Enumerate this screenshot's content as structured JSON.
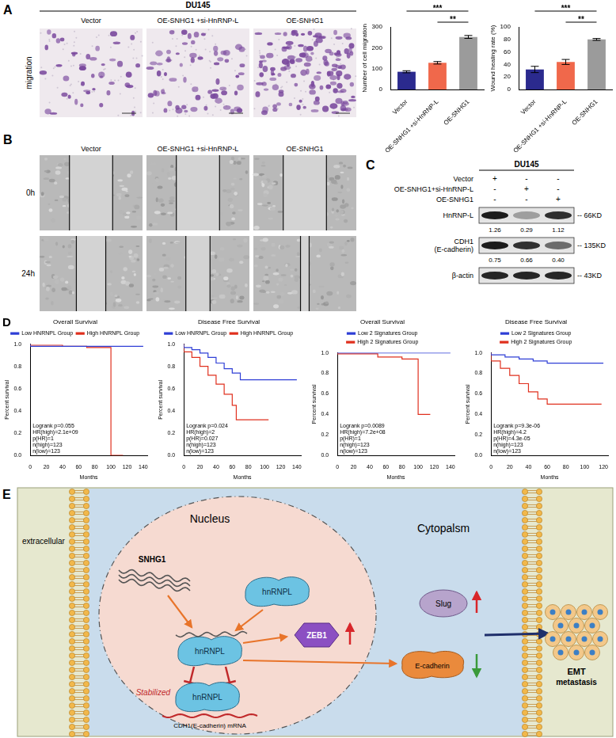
{
  "panel_labels": [
    "A",
    "B",
    "C",
    "D",
    "E"
  ],
  "panel_a": {
    "cell_line": "DU145",
    "columns": [
      "Vector",
      "OE-SNHG1 +si-HnRNP-L",
      "OE-SNHG1"
    ],
    "row_label": "migration"
  },
  "panel_b": {
    "columns": [
      "Vector",
      "OE-SNHG1 +si-HnRNP-L",
      "OE-SNHG1"
    ],
    "rows": [
      "0h",
      "24h"
    ]
  },
  "panel_c": {
    "cell_line": "DU145",
    "conditions": [
      {
        "name": "Vector",
        "marks": [
          "+",
          "-",
          "-"
        ]
      },
      {
        "name": "OE-SNHG1+si-HnRNP-L",
        "marks": [
          "-",
          "+",
          "-"
        ]
      },
      {
        "name": "OE-SNHG1",
        "marks": [
          "-",
          "-",
          "+"
        ]
      }
    ],
    "bands": [
      {
        "name": [
          "HnRNP-L"
        ],
        "size": "-- 66KD",
        "values": [
          1.26,
          0.29,
          1.12
        ],
        "value_labels": [
          "1.26",
          "0.29",
          "1.12"
        ]
      },
      {
        "name": [
          "CDH1",
          "(E-cadherin)"
        ],
        "size": "-- 135KD",
        "values": [
          0.75,
          0.66,
          0.4
        ],
        "value_labels": [
          "0.75",
          "0.66",
          "0.40"
        ]
      },
      {
        "name": [
          "β-actin"
        ],
        "size": "-- 43KD"
      }
    ]
  },
  "chart_data": [
    {
      "type": "bar",
      "y_label": "Number of cell migration",
      "categories": [
        "Vector",
        "OE-SNHG1 +si-HnRNP-L",
        "OE-SNHG1"
      ],
      "values": [
        85,
        128,
        252
      ],
      "errors": [
        5,
        6,
        7
      ],
      "colors": [
        "#2b2a8e",
        "#f0684b",
        "#9b9b9b"
      ],
      "ylim": [
        0,
        300
      ],
      "yticks": [
        0,
        100,
        200,
        300
      ],
      "grid": false,
      "significance": [
        {
          "from": "Vector",
          "to": "OE-SNHG1",
          "label": "***"
        },
        {
          "from": "OE-SNHG1 +si-HnRNP-L",
          "to": "OE-SNHG1",
          "label": "**"
        }
      ]
    },
    {
      "type": "bar",
      "y_label": "Wound healing rate (%)",
      "categories": [
        "Vector",
        "OE-SNHG1 +si-HnRNP-L",
        "OE-SNHG1"
      ],
      "values": [
        32,
        44,
        80
      ],
      "errors": [
        5,
        4,
        1.5
      ],
      "colors": [
        "#2b2a8e",
        "#f0684b",
        "#9b9b9b"
      ],
      "ylim": [
        0,
        100
      ],
      "yticks": [
        0,
        20,
        40,
        60,
        80,
        100
      ],
      "grid": false,
      "significance": [
        {
          "from": "Vector",
          "to": "OE-SNHG1",
          "label": "***"
        },
        {
          "from": "OE-SNHG1 +si-HnRNP-L",
          "to": "OE-SNHG1",
          "label": "**"
        }
      ]
    },
    {
      "type": "line",
      "title": "Overall Survival",
      "x_label": "Months",
      "y_label": "Percent survival",
      "xlim": [
        0,
        145
      ],
      "xticks": [
        0,
        20,
        40,
        60,
        80,
        100,
        120,
        140
      ],
      "ylim": [
        0,
        1
      ],
      "yticks": [
        {
          "value": 0,
          "label": "0.0"
        },
        0.2,
        0.4,
        0.6,
        0.8,
        {
          "value": 1,
          "label": "1.0"
        }
      ],
      "grid": false,
      "legend": "top",
      "line_style": "step",
      "series": [
        {
          "name": "Low HNRNPL Group",
          "color": "#2f3fd6",
          "x": [
            0,
            75,
            140
          ],
          "values": [
            1,
            0.98,
            0.98
          ]
        },
        {
          "name": "High HNRNPL Group",
          "color": "#e0301e",
          "x": [
            0,
            40,
            70,
            100,
            115
          ],
          "values": [
            1,
            0.99,
            0.98,
            0.97,
            0
          ]
        }
      ],
      "annotations": [
        "Logrank p=0.055",
        "HR(high)=2.1e+09",
        "p(HR)=1",
        "n(high)=123",
        "n(low)=123"
      ]
    },
    {
      "type": "line",
      "title": "Disease Free Survival",
      "x_label": "Months",
      "y_label": "Percent survival",
      "xlim": [
        0,
        145
      ],
      "xticks": [
        0,
        20,
        40,
        60,
        80,
        100,
        120,
        140
      ],
      "ylim": [
        0,
        1
      ],
      "yticks": [
        {
          "value": 0,
          "label": "0.0"
        },
        0.2,
        0.4,
        0.6,
        0.8,
        {
          "value": 1,
          "label": "1.0"
        }
      ],
      "grid": false,
      "legend": "top",
      "line_style": "step",
      "series": [
        {
          "name": "Low HNRNPL Group",
          "color": "#2f3fd6",
          "x": [
            0,
            10,
            20,
            30,
            40,
            50,
            60,
            70,
            80,
            140
          ],
          "values": [
            1,
            0.97,
            0.95,
            0.92,
            0.88,
            0.83,
            0.78,
            0.74,
            0.68,
            0.68
          ]
        },
        {
          "name": "High HNRNPL Group",
          "color": "#e0301e",
          "x": [
            0,
            10,
            20,
            30,
            40,
            50,
            60,
            65,
            72,
            105
          ],
          "values": [
            1,
            0.93,
            0.88,
            0.8,
            0.72,
            0.64,
            0.55,
            0.45,
            0.32,
            0.32
          ]
        }
      ],
      "annotations": [
        "Logrank p=0.024",
        "HR(high)=2",
        "p(HR)=0.027",
        "n(high)=123",
        "n(low)=123"
      ]
    },
    {
      "type": "line",
      "title": "Overall Survival",
      "x_label": "Months",
      "y_label": "Percent survival",
      "xlim": [
        0,
        145
      ],
      "xticks": [
        0,
        20,
        40,
        60,
        80,
        100,
        120,
        140
      ],
      "ylim": [
        0,
        1
      ],
      "yticks": [
        {
          "value": 0,
          "label": "0.0"
        },
        0.2,
        0.4,
        0.6,
        0.8,
        {
          "value": 1,
          "label": "1.0"
        }
      ],
      "grid": false,
      "legend": "top",
      "line_style": "step",
      "series": [
        {
          "name": "Low 2 Signatures Group",
          "color": "#2f3fd6",
          "x": [
            0,
            140
          ],
          "values": [
            1,
            1
          ]
        },
        {
          "name": "High 2 Signatures Group",
          "color": "#e0301e",
          "x": [
            0,
            50,
            80,
            100,
            115
          ],
          "values": [
            1,
            0.99,
            0.96,
            0.94,
            0.4
          ]
        }
      ],
      "annotations": [
        "Logrank p=0.0089",
        "HR(high)=7.2e+08",
        "p(HR)=1",
        "n(high)=123",
        "n(low)=123"
      ]
    },
    {
      "type": "line",
      "title": "Disease Free Survival",
      "x_label": "Months",
      "y_label": "Percent survival",
      "xlim": [
        0,
        125
      ],
      "xticks": [
        0,
        20,
        40,
        60,
        80,
        100,
        120
      ],
      "ylim": [
        0,
        1
      ],
      "yticks": [
        {
          "value": 0,
          "label": "0.0"
        },
        0.2,
        0.4,
        0.6,
        0.8,
        {
          "value": 1,
          "label": "1.0"
        }
      ],
      "grid": false,
      "legend": "top",
      "line_style": "step",
      "series": [
        {
          "name": "Low 2 Signatures Group",
          "color": "#2f3fd6",
          "x": [
            0,
            15,
            30,
            45,
            60,
            75,
            120
          ],
          "values": [
            1,
            0.98,
            0.96,
            0.94,
            0.92,
            0.9,
            0.9
          ]
        },
        {
          "name": "High 2 Signatures Group",
          "color": "#e0301e",
          "x": [
            0,
            10,
            20,
            30,
            40,
            50,
            60,
            70,
            118
          ],
          "values": [
            1,
            0.92,
            0.85,
            0.78,
            0.7,
            0.62,
            0.55,
            0.5,
            0.5
          ]
        }
      ],
      "annotations": [
        "Logrank p=9.3e-06",
        "HR(high)=4.2",
        "p(HR)=4.3e-05",
        "n(high)=123",
        "n(low)=123"
      ]
    }
  ],
  "panel_e": {
    "extracellular": "extracellular",
    "nucleus": "Nucleus",
    "cytoplasm": "Cytopalsm",
    "snhg1": "SNHG1",
    "hnrnpl": [
      "hnRNPL",
      "hnRNPL",
      "hnRNPL"
    ],
    "zeb1": "ZEB1",
    "slug": "Slug",
    "e_cadherin": "E-cadherin",
    "stabilized": "Stabilized",
    "mrna": "CDH1(E-cadherin) mRNA",
    "outcome": [
      "EMT",
      "metastasis"
    ]
  }
}
